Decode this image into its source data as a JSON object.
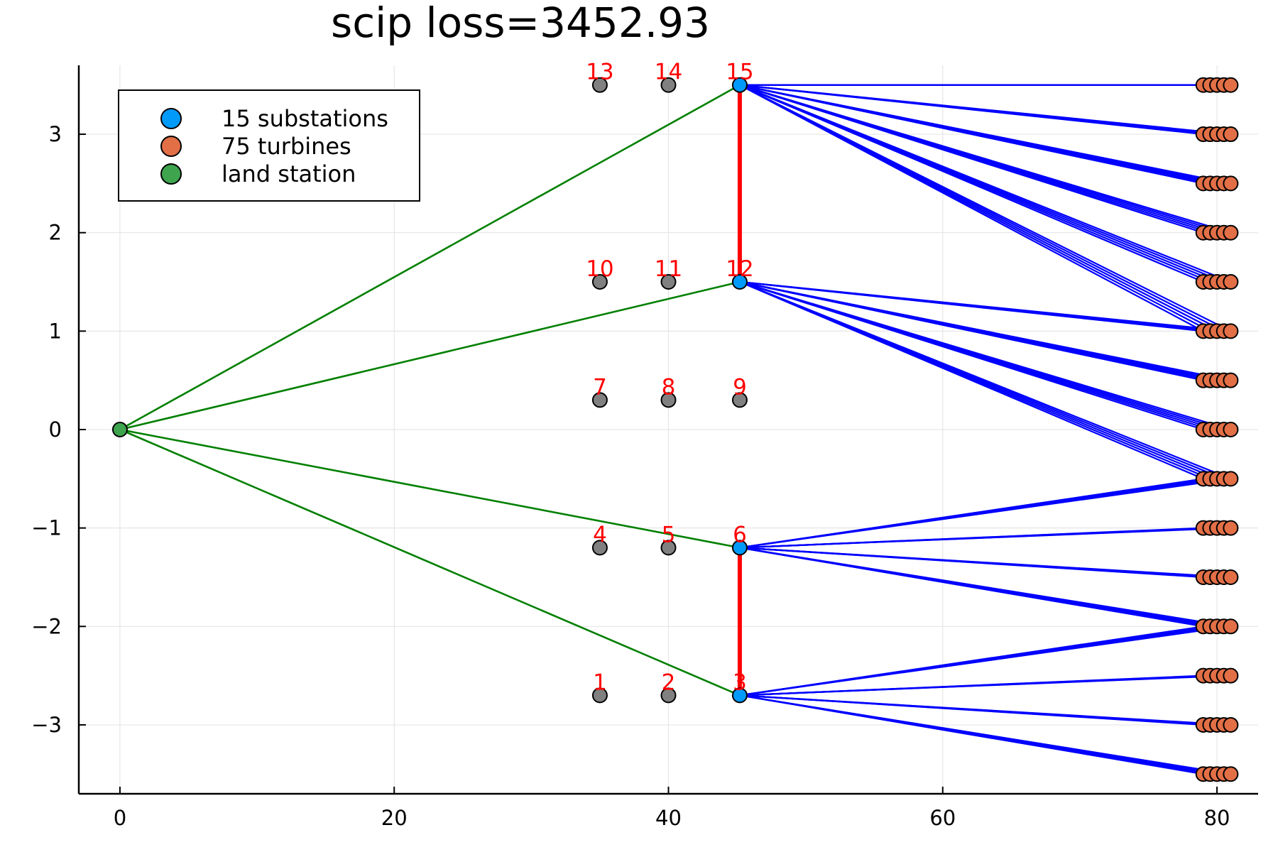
{
  "chart_data": {
    "type": "scatter",
    "title": "scip loss=3452.93",
    "xlabel": "",
    "ylabel": "",
    "xlim": [
      -3,
      83
    ],
    "ylim": [
      -3.7,
      3.7
    ],
    "xticks": [
      0,
      20,
      40,
      60,
      80
    ],
    "xtick_labels": [
      "0",
      "20",
      "40",
      "60",
      "80"
    ],
    "yticks": [
      -3,
      -2,
      -1,
      0,
      1,
      2,
      3
    ],
    "ytick_labels": [
      "−3",
      "−2",
      "−1",
      "0",
      "1",
      "2",
      "3"
    ],
    "grid": true,
    "legend_position": "top-left",
    "colors": {
      "substation_active": "#009AFA",
      "substation_inactive": "#808080",
      "turbine": "#E26F46",
      "land_station": "#3EA44E",
      "land_cable": "#008000",
      "turbine_cable": "#0000FF",
      "substation_link": "#FF0000",
      "label": "#FF0000"
    },
    "legend": [
      {
        "label": "15 substations",
        "color": "#009AFA"
      },
      {
        "label": "75 turbines",
        "color": "#E26F46"
      },
      {
        "label": "land station",
        "color": "#3EA44E"
      }
    ],
    "land_station": {
      "x": 0,
      "y": 0
    },
    "substations": [
      {
        "id": "1",
        "x": 35,
        "y": -2.7,
        "active": false
      },
      {
        "id": "2",
        "x": 40,
        "y": -2.7,
        "active": false
      },
      {
        "id": "3",
        "x": 45.2,
        "y": -2.7,
        "active": true
      },
      {
        "id": "4",
        "x": 35,
        "y": -1.2,
        "active": false
      },
      {
        "id": "5",
        "x": 40,
        "y": -1.2,
        "active": false
      },
      {
        "id": "6",
        "x": 45.2,
        "y": -1.2,
        "active": true
      },
      {
        "id": "7",
        "x": 35,
        "y": 0.3,
        "active": false
      },
      {
        "id": "8",
        "x": 40,
        "y": 0.3,
        "active": false
      },
      {
        "id": "9",
        "x": 45.2,
        "y": 0.3,
        "active": false
      },
      {
        "id": "10",
        "x": 35,
        "y": 1.5,
        "active": false
      },
      {
        "id": "11",
        "x": 40,
        "y": 1.5,
        "active": false
      },
      {
        "id": "12",
        "x": 45.2,
        "y": 1.5,
        "active": true
      },
      {
        "id": "13",
        "x": 35,
        "y": 3.5,
        "active": false
      },
      {
        "id": "14",
        "x": 40,
        "y": 3.5,
        "active": false
      },
      {
        "id": "15",
        "x": 45.2,
        "y": 3.5,
        "active": true
      }
    ],
    "turbine_x": [
      79,
      79.5,
      80,
      80.5,
      81
    ],
    "turbine_y": [
      3.5,
      3,
      2.5,
      2,
      1.5,
      1,
      0.5,
      0,
      -0.5,
      -1,
      -1.5,
      -2,
      -2.5,
      -3,
      -3.5
    ],
    "land_links": [
      "3",
      "6",
      "12",
      "15"
    ],
    "substation_links": [
      [
        "15",
        "12"
      ],
      [
        "6",
        "3"
      ]
    ],
    "turbine_links": [
      {
        "sub": "15",
        "rows": [
          3.5,
          3,
          2.5,
          2,
          1.5,
          1
        ]
      },
      {
        "sub": "12",
        "rows": [
          1,
          0.5,
          0,
          -0.5
        ]
      },
      {
        "sub": "6",
        "rows": [
          -0.5,
          -1,
          -1.5,
          -2
        ]
      },
      {
        "sub": "3",
        "rows": [
          -2,
          -2.5,
          -3,
          -3.5
        ]
      }
    ]
  }
}
